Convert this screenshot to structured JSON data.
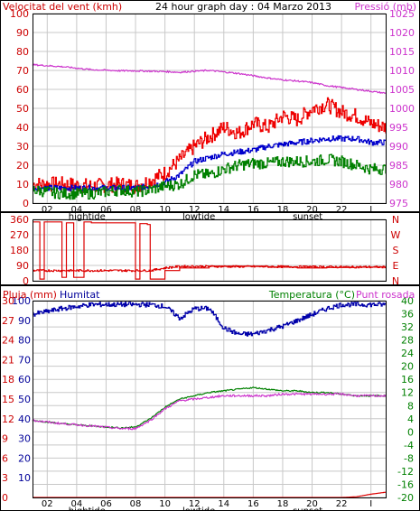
{
  "colors": {
    "wind_avg": "#0000cc",
    "wind_gust": "#ee0000",
    "wind_low": "#008000",
    "pressure": "#cc33cc",
    "humidity": "#0000aa",
    "temperature": "#008000",
    "dewpoint": "#cc33cc",
    "rain": "#dd0000",
    "direction": "#dd0000",
    "grid": "#c8c8c8"
  },
  "panel1": {
    "title": "24 hour graph day : 04 Marzo 2013",
    "left_label": "Velocitat del vent (kmh)",
    "right_label": "Pressió (mb)",
    "left_ticks": [
      "0",
      "10",
      "20",
      "30",
      "40",
      "50",
      "60",
      "70",
      "80",
      "90",
      "100"
    ],
    "right_ticks": [
      "975",
      "980",
      "985",
      "990",
      "995",
      "1000",
      "1005",
      "1010",
      "1015",
      "1020",
      "1025"
    ],
    "x_ticks": [
      "02",
      "04",
      "06",
      "08",
      "10",
      "12",
      "14",
      "16",
      "18",
      "20",
      "22",
      "I"
    ],
    "markers": [
      "hightide",
      "lowtide",
      "sunset"
    ]
  },
  "panel2": {
    "left_ticks": [
      "360",
      "270",
      "180",
      "90",
      "0"
    ],
    "right_letters": [
      "N",
      "W",
      "S",
      "E",
      "N"
    ]
  },
  "panel3": {
    "left_label": "Pluja (mm)",
    "mid_label": "Humitat",
    "right_label_1": "Temperatura (°C)",
    "right_label_2": "Punt rosada",
    "left_ticks_rain": [
      "0",
      "3",
      "6",
      "9",
      "12",
      "15",
      "18",
      "21",
      "24",
      "27",
      "30"
    ],
    "left_ticks_hum": [
      "10",
      "20",
      "30",
      "40",
      "50",
      "60",
      "70",
      "80",
      "90",
      "100"
    ],
    "right_ticks": [
      "-20",
      "-16",
      "-12",
      "-8",
      "-4",
      "0",
      "4",
      "8",
      "12",
      "16",
      "20",
      "24",
      "28",
      "32",
      "36",
      "40"
    ],
    "x_ticks": [
      "02",
      "04",
      "06",
      "08",
      "10",
      "12",
      "14",
      "16",
      "18",
      "20",
      "22",
      "I"
    ],
    "markers": [
      "hightide",
      "lowtide",
      "sunset"
    ]
  },
  "chart_data": [
    {
      "type": "line",
      "title": "24 hour graph day : 04 Marzo 2013",
      "xlabel": "",
      "ylabel": "Velocitat del vent (kmh)",
      "y2label": "Pressió (mb)",
      "ylim": [
        0,
        100
      ],
      "y2lim": [
        975,
        1025
      ],
      "x": [
        0,
        2,
        4,
        6,
        7,
        8,
        9,
        10,
        11,
        12,
        13,
        14,
        15,
        16,
        17,
        18,
        19,
        20,
        21,
        22,
        23,
        24
      ],
      "series": [
        {
          "name": "",
          "axis": "left",
          "values": [
            10,
            10,
            9,
            10,
            9,
            12,
            16,
            23,
            30,
            35,
            40,
            37,
            42,
            40,
            46,
            44,
            50,
            52,
            48,
            46,
            42,
            40
          ]
        },
        {
          "name": "",
          "axis": "left",
          "values": [
            8,
            8,
            8,
            8,
            8,
            9,
            11,
            15,
            22,
            24,
            26,
            27,
            28,
            30,
            31,
            32,
            33,
            34,
            34,
            34,
            32,
            32
          ]
        },
        {
          "name": "",
          "axis": "left",
          "values": [
            7,
            5,
            5,
            7,
            6,
            7,
            9,
            10,
            15,
            15,
            18,
            20,
            21,
            21,
            22,
            22,
            22,
            23,
            22,
            20,
            18,
            18
          ]
        },
        {
          "name": "Pressió (mb)",
          "axis": "right",
          "values": [
            1011.5,
            1011,
            1010.2,
            1009.9,
            1009.9,
            1009.8,
            1009.7,
            1009.5,
            1009.8,
            1010,
            1009.6,
            1009.2,
            1008.6,
            1008,
            1007.5,
            1007.2,
            1006.8,
            1006,
            1005.5,
            1005,
            1004.5,
            1004
          ]
        }
      ]
    },
    {
      "type": "line",
      "ylabel": "",
      "ylim": [
        0,
        360
      ],
      "y2labels": [
        "N",
        "W",
        "S",
        "E",
        "N"
      ],
      "x": [
        0,
        0.5,
        0.8,
        1.6,
        2,
        2.3,
        2.8,
        3.5,
        3.8,
        4,
        5,
        6,
        7,
        7.3,
        7.8,
        8,
        9,
        10,
        12,
        14,
        16,
        18,
        20,
        22,
        24
      ],
      "series": [
        {
          "name": "",
          "values": [
            345,
            10,
            345,
            345,
            20,
            340,
            20,
            345,
            345,
            340,
            340,
            340,
            10,
            335,
            330,
            10,
            60,
            75,
            85,
            85,
            80,
            75,
            78,
            80,
            80
          ]
        }
      ]
    },
    {
      "type": "line",
      "ylabel": "Pluja (mm)",
      "y2label": "Temperatura (°C)",
      "ylim": [
        0,
        30
      ],
      "y2lim": [
        -20,
        40
      ],
      "x": [
        0,
        2,
        4,
        6,
        7,
        8,
        9,
        10,
        11,
        12,
        13,
        14,
        15,
        16,
        17,
        18,
        19,
        20,
        21,
        22,
        23,
        24
      ],
      "series": [
        {
          "name": "Pluja (mm)",
          "axis": "rain",
          "values": [
            0,
            0,
            0,
            0,
            0,
            0,
            0,
            0,
            0,
            0,
            0,
            0,
            0,
            0,
            0,
            0,
            0,
            0,
            0,
            0.1,
            0.5,
            0.8
          ]
        },
        {
          "name": "Humitat",
          "axis": "humidity",
          "values": [
            93,
            96,
            98,
            98,
            98,
            98,
            97,
            91,
            96,
            96,
            86,
            83,
            83,
            85,
            87,
            90,
            93,
            96,
            98,
            98,
            98,
            98
          ]
        },
        {
          "name": "Temperatura (°C)",
          "axis": "right",
          "values": [
            3.5,
            2.5,
            1.8,
            1.2,
            1.5,
            4,
            7.5,
            10,
            11,
            12,
            12.5,
            13,
            13.5,
            13,
            12.5,
            12.5,
            12,
            12,
            11.5,
            11,
            11,
            11
          ]
        },
        {
          "name": "Punt rosada",
          "axis": "right",
          "values": [
            3.5,
            2.5,
            1.8,
            1,
            1,
            3.5,
            7,
            9.5,
            10,
            10.5,
            11,
            11,
            11,
            11,
            11.5,
            11.5,
            11.5,
            11.5,
            11.5,
            11,
            11,
            11
          ]
        }
      ]
    }
  ]
}
